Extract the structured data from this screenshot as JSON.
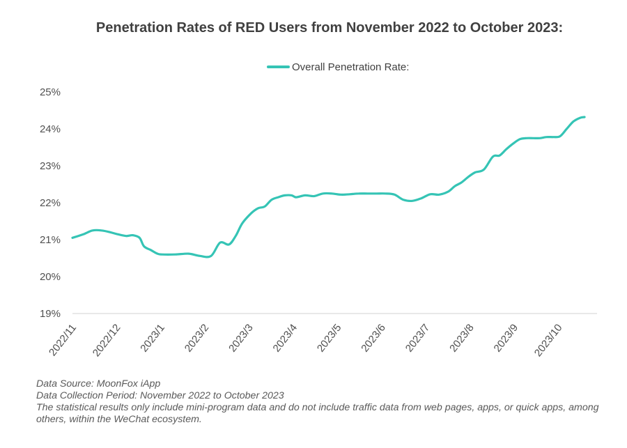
{
  "chart_data": {
    "type": "line",
    "title": "Penetration Rates of RED Users from November 2022 to October 2023:",
    "legend": {
      "position": "top-center",
      "entries": [
        "Overall Penetration Rate:"
      ]
    },
    "xlabel": "",
    "ylabel": "",
    "ylim": [
      19,
      25
    ],
    "grid": false,
    "yticks": [
      19,
      20,
      21,
      22,
      23,
      24,
      25
    ],
    "ytick_labels": [
      "19%",
      "20%",
      "21%",
      "22%",
      "23%",
      "24%",
      "25%"
    ],
    "x_tick_labels": [
      "2022/11",
      "2022/12",
      "2023/1",
      "2023/2",
      "2023/3",
      "2023/4",
      "2023/5",
      "2023/6",
      "2023/7",
      "2023/8",
      "2023/9",
      "2023/10"
    ],
    "color": "#35C4B5",
    "series": [
      {
        "name": "Overall Penetration Rate:",
        "month_index": [
          0,
          0.25,
          0.45,
          0.65,
          0.85,
          1.0,
          1.2,
          1.35,
          1.5,
          1.6,
          1.75,
          1.9,
          2.0,
          2.3,
          2.6,
          2.85,
          3.1,
          3.3,
          3.5,
          3.65,
          3.8,
          4.0,
          4.15,
          4.3,
          4.45,
          4.6,
          4.75,
          4.9,
          5.0,
          5.2,
          5.4,
          5.6,
          5.8,
          6.0,
          6.2,
          6.4,
          6.6,
          6.8,
          7.0,
          7.2,
          7.4,
          7.6,
          7.8,
          8.0,
          8.2,
          8.4,
          8.55,
          8.7,
          8.85,
          9.0,
          9.2,
          9.4,
          9.55,
          9.7,
          9.85,
          10.0,
          10.15,
          10.3,
          10.45,
          10.6,
          10.75,
          10.9,
          11.05,
          11.2,
          11.35,
          11.45
        ],
        "values": [
          21.05,
          21.15,
          21.25,
          21.25,
          21.2,
          21.15,
          21.1,
          21.12,
          21.05,
          20.82,
          20.72,
          20.62,
          20.6,
          20.6,
          20.62,
          20.56,
          20.56,
          20.92,
          20.87,
          21.1,
          21.45,
          21.72,
          21.85,
          21.9,
          22.08,
          22.15,
          22.2,
          22.2,
          22.15,
          22.2,
          22.18,
          22.25,
          22.25,
          22.22,
          22.23,
          22.25,
          22.25,
          22.25,
          22.25,
          22.22,
          22.08,
          22.05,
          22.12,
          22.23,
          22.22,
          22.3,
          22.45,
          22.55,
          22.7,
          22.82,
          22.9,
          23.25,
          23.28,
          23.45,
          23.6,
          23.72,
          23.75,
          23.75,
          23.75,
          23.78,
          23.78,
          23.8,
          24.0,
          24.2,
          24.3,
          24.32
        ]
      }
    ]
  },
  "footnotes": {
    "source": "Data Source: MoonFox iApp",
    "period": "Data Collection Period: November 2022 to October 2023",
    "note": "The statistical results only include mini-program data and do not include traffic data from web pages, apps, or quick apps, among others, within the WeChat ecosystem."
  }
}
